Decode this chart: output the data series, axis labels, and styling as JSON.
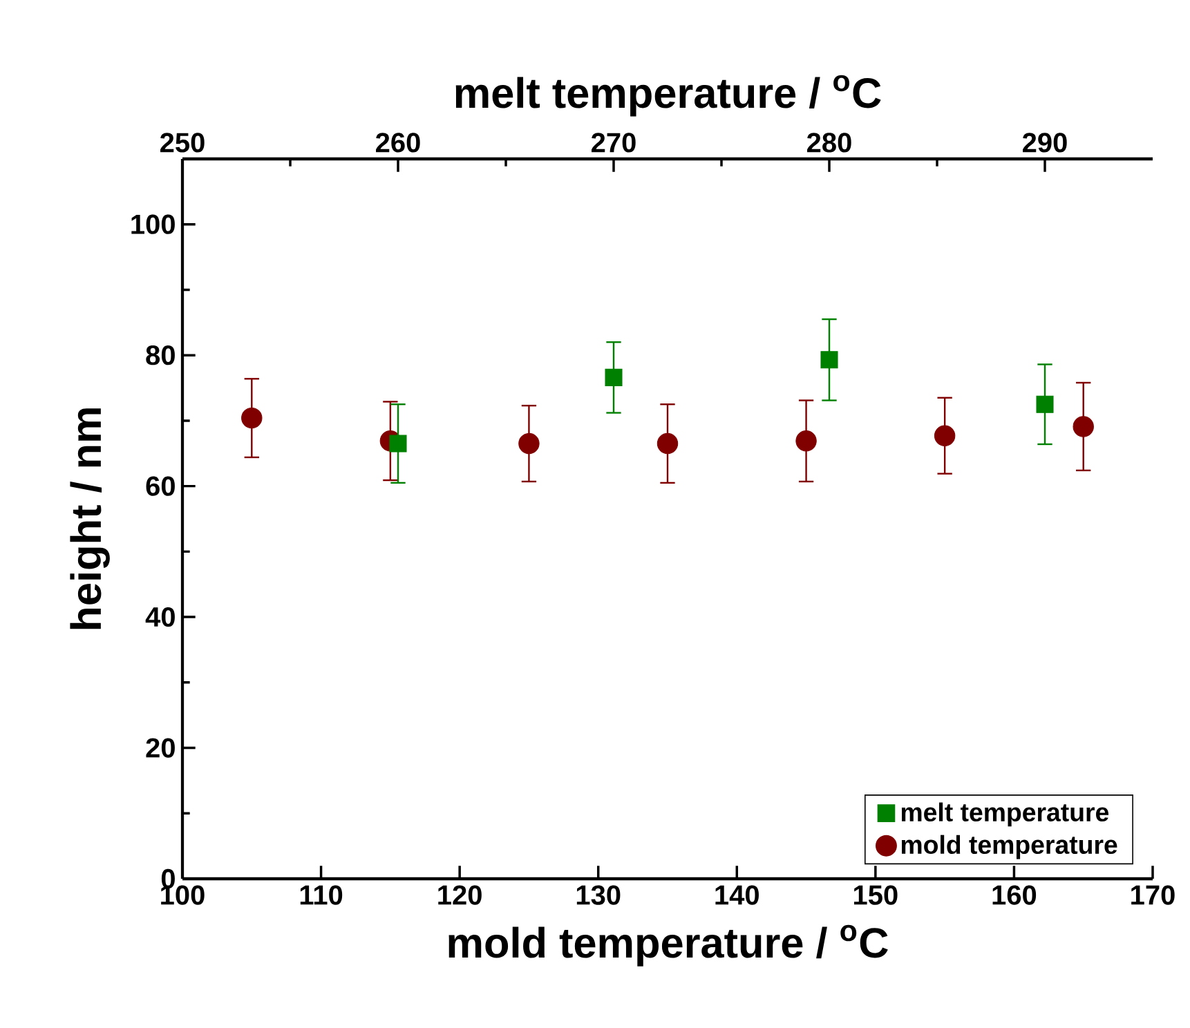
{
  "chart_data": {
    "type": "scatter",
    "xlabel": "mold temperature / $^{o}$C",
    "x2label": "melt temperature / $^{o}$C",
    "ylabel": "height / nm",
    "xlim": [
      100,
      170
    ],
    "xticks": [
      100,
      110,
      120,
      130,
      140,
      150,
      160,
      170
    ],
    "x2lim": [
      250,
      295
    ],
    "x2ticks": [
      250,
      260,
      270,
      280,
      290
    ],
    "ylim": [
      0,
      110
    ],
    "yticks": [
      0,
      20,
      40,
      60,
      80,
      100
    ],
    "legend": "bottom right",
    "series": [
      {
        "name": "melt temperature",
        "color": "#008000",
        "marker": "square",
        "axis": "x2",
        "x": [
          260,
          270,
          280,
          290
        ],
        "values": [
          66.5,
          76.6,
          79.3,
          72.5
        ],
        "errors": [
          6,
          5.4,
          6.2,
          6.1
        ]
      },
      {
        "name": "mold temperature",
        "color": "#800000",
        "marker": "circle",
        "x": [
          105,
          115,
          125,
          135,
          145,
          155,
          165
        ],
        "values": [
          70.4,
          66.9,
          66.5,
          66.5,
          66.9,
          67.7,
          69.1
        ],
        "errors": [
          6,
          6,
          5.8,
          6,
          6.2,
          5.8,
          6.7
        ]
      }
    ]
  }
}
